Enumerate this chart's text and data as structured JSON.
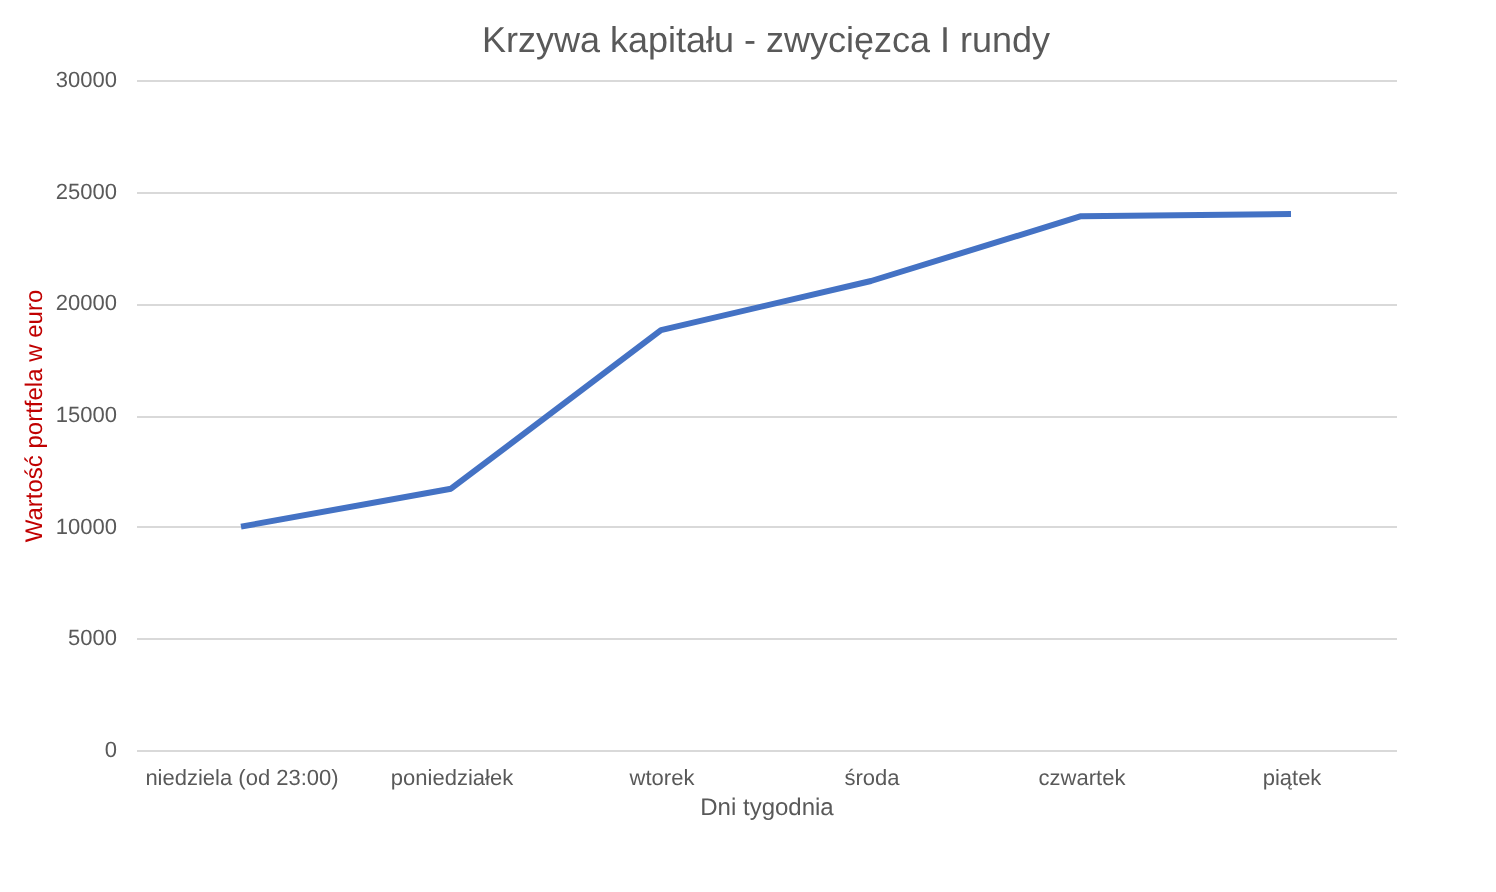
{
  "chart_data": {
    "type": "line",
    "title": "Krzywa kapitału - zwycięzca I rundy",
    "xlabel": "Dni tygodnia",
    "ylabel": "Wartość portfela w euro",
    "categories": [
      "niedziela (od 23:00)",
      "poniedziałek",
      "wtorek",
      "środa",
      "czwartek",
      "piątek"
    ],
    "series": [
      {
        "color": "#4472c4",
        "values": [
          10000,
          11700,
          18800,
          21000,
          23900,
          24000
        ]
      }
    ],
    "ylim": [
      0,
      30000
    ],
    "yticks": [
      0,
      5000,
      10000,
      15000,
      20000,
      25000,
      30000
    ],
    "grid": "y",
    "marker": "none",
    "line_style": "solid"
  }
}
